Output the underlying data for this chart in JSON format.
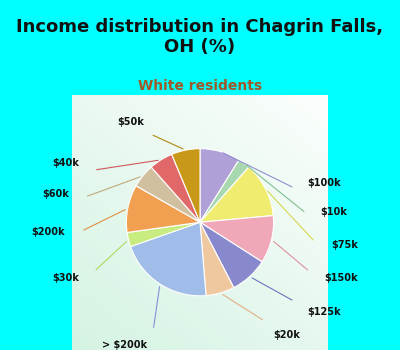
{
  "title": "Income distribution in Chagrin Falls,\nOH (%)",
  "subtitle": "White residents",
  "background_color_top": "#00FFFF",
  "background_color_plot": "#e8f5ee",
  "labels": [
    "$100k",
    "$10k",
    "$75k",
    "$150k",
    "$125k",
    "$20k",
    "> $200k",
    "$30k",
    "$200k",
    "$60k",
    "$40k",
    "$50k"
  ],
  "sizes": [
    8.5,
    2.5,
    11.5,
    10,
    8,
    6,
    20,
    3,
    10,
    5,
    5,
    6
  ],
  "colors": [
    "#b0a0d8",
    "#a8d8b0",
    "#f0ec70",
    "#f0a8b8",
    "#8888cc",
    "#f0c8a0",
    "#a0bce8",
    "#c8ec80",
    "#f0a050",
    "#d0c0a0",
    "#e06868",
    "#c89818"
  ],
  "title_fontsize": 13,
  "subtitle_fontsize": 10,
  "subtitle_color": "#a05828",
  "title_color": "#111111",
  "label_fontsize": 7,
  "label_color": "#111111",
  "line_color_map": {
    "$100k": "#9090cc",
    "$10k": "#80c090",
    "$75k": "#d8d850",
    "$150k": "#e090a0",
    "$125k": "#7070c0",
    "$20k": "#e0b088",
    "> $200k": "#8090d8",
    "$30k": "#b0d860",
    "$200k": "#e09040",
    "$60k": "#c0a878",
    "$40k": "#d05858",
    "$50k": "#b08810"
  }
}
